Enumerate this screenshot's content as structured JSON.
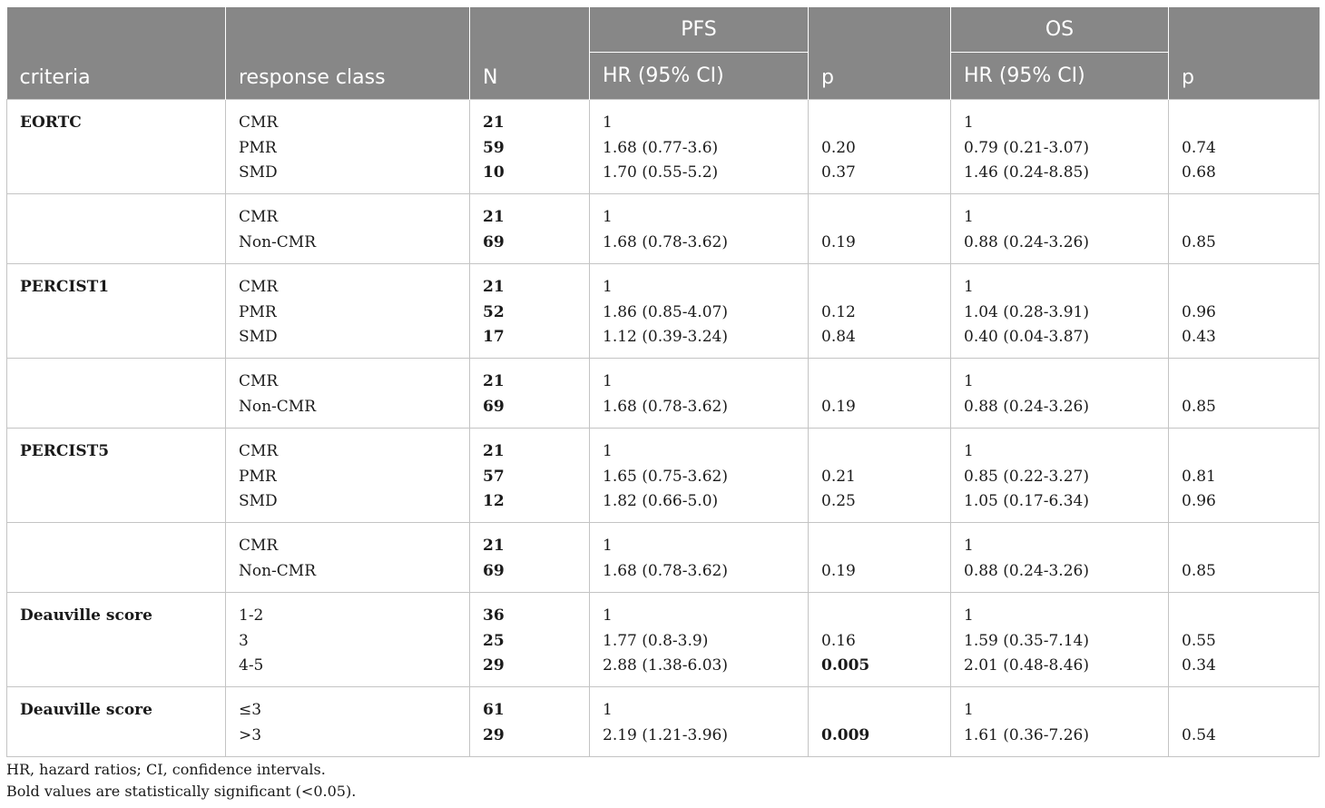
{
  "header": {
    "criteria": "criteria",
    "response_class": "response class",
    "n": "N",
    "pfs": "PFS",
    "os": "OS",
    "pfs_hr": "HR (95% CI)",
    "pfs_p": "p",
    "os_hr": "HR (95% CI)",
    "os_p": "p"
  },
  "groups": [
    {
      "criteria": "EORTC",
      "rows": [
        {
          "class": "CMR",
          "n": "21",
          "pfs_hr": "1",
          "pfs_p": "",
          "os_hr": "1",
          "os_p": ""
        },
        {
          "class": "PMR",
          "n": "59",
          "pfs_hr": "1.68 (0.77-3.6)",
          "pfs_p": "0.20",
          "os_hr": "0.79 (0.21-3.07)",
          "os_p": "0.74"
        },
        {
          "class": "SMD",
          "n": "10",
          "pfs_hr": "1.70 (0.55-5.2)",
          "pfs_p": "0.37",
          "os_hr": "1.46 (0.24-8.85)",
          "os_p": "0.68"
        }
      ]
    },
    {
      "criteria": "",
      "rows": [
        {
          "class": "CMR",
          "n": "21",
          "pfs_hr": "1",
          "pfs_p": "",
          "os_hr": "1",
          "os_p": ""
        },
        {
          "class": "Non-CMR",
          "n": "69",
          "pfs_hr": "1.68 (0.78-3.62)",
          "pfs_p": "0.19",
          "os_hr": "0.88 (0.24-3.26)",
          "os_p": "0.85"
        }
      ]
    },
    {
      "criteria": "PERCIST1",
      "rows": [
        {
          "class": "CMR",
          "n": "21",
          "pfs_hr": "1",
          "pfs_p": "",
          "os_hr": "1",
          "os_p": ""
        },
        {
          "class": "PMR",
          "n": "52",
          "pfs_hr": "1.86 (0.85-4.07)",
          "pfs_p": "0.12",
          "os_hr": "1.04 (0.28-3.91)",
          "os_p": "0.96"
        },
        {
          "class": "SMD",
          "n": "17",
          "pfs_hr": "1.12 (0.39-3.24)",
          "pfs_p": "0.84",
          "os_hr": "0.40 (0.04-3.87)",
          "os_p": "0.43"
        }
      ]
    },
    {
      "criteria": "",
      "rows": [
        {
          "class": "CMR",
          "n": "21",
          "pfs_hr": "1",
          "pfs_p": "",
          "os_hr": "1",
          "os_p": ""
        },
        {
          "class": "Non-CMR",
          "n": "69",
          "pfs_hr": "1.68 (0.78-3.62)",
          "pfs_p": "0.19",
          "os_hr": "0.88 (0.24-3.26)",
          "os_p": "0.85"
        }
      ]
    },
    {
      "criteria": "PERCIST5",
      "rows": [
        {
          "class": "CMR",
          "n": "21",
          "pfs_hr": "1",
          "pfs_p": "",
          "os_hr": "1",
          "os_p": ""
        },
        {
          "class": "PMR",
          "n": "57",
          "pfs_hr": "1.65 (0.75-3.62)",
          "pfs_p": "0.21",
          "os_hr": "0.85 (0.22-3.27)",
          "os_p": "0.81"
        },
        {
          "class": "SMD",
          "n": "12",
          "pfs_hr": "1.82 (0.66-5.0)",
          "pfs_p": "0.25",
          "os_hr": "1.05 (0.17-6.34)",
          "os_p": "0.96"
        }
      ]
    },
    {
      "criteria": "",
      "rows": [
        {
          "class": "CMR",
          "n": "21",
          "pfs_hr": "1",
          "pfs_p": "",
          "os_hr": "1",
          "os_p": ""
        },
        {
          "class": "Non-CMR",
          "n": "69",
          "pfs_hr": "1.68 (0.78-3.62)",
          "pfs_p": "0.19",
          "os_hr": "0.88 (0.24-3.26)",
          "os_p": "0.85"
        }
      ]
    },
    {
      "criteria": "Deauville score",
      "rows": [
        {
          "class": "1-2",
          "n": "36",
          "pfs_hr": "1",
          "pfs_p": "",
          "os_hr": "1",
          "os_p": ""
        },
        {
          "class": "3",
          "n": "25",
          "pfs_hr": "1.77 (0.8-3.9)",
          "pfs_p": "0.16",
          "os_hr": "1.59 (0.35-7.14)",
          "os_p": "0.55"
        },
        {
          "class": "4-5",
          "n": "29",
          "pfs_hr": "2.88 (1.38-6.03)",
          "pfs_p": "0.005",
          "pfs_p_bold": true,
          "os_hr": "2.01 (0.48-8.46)",
          "os_p": "0.34"
        }
      ]
    },
    {
      "criteria": "Deauville score",
      "rows": [
        {
          "class": "≤3",
          "n": "61",
          "pfs_hr": "1",
          "pfs_p": "",
          "os_hr": "1",
          "os_p": ""
        },
        {
          "class": ">3",
          "n": "29",
          "pfs_hr": "2.19 (1.21-3.96)",
          "pfs_p": "0.009",
          "pfs_p_bold": true,
          "os_hr": "1.61 (0.36-7.26)",
          "os_p": "0.54"
        }
      ]
    }
  ],
  "footnotes": [
    "HR, hazard ratios; CI, confidence intervals.",
    "Bold values are statistically significant (<0.05)."
  ]
}
